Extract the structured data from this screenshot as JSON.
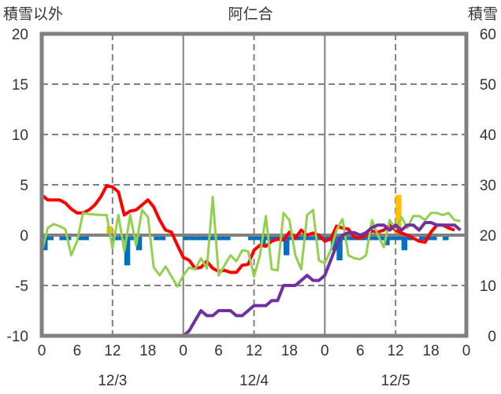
{
  "chart_data": {
    "type": "line",
    "title": "阿仁合",
    "left_axis_label": "積雪以外",
    "right_axis_label": "積雪",
    "left_ylim": [
      -10,
      20
    ],
    "left_ticks": [
      "20",
      "15",
      "10",
      "5",
      "0",
      "-5",
      "-10"
    ],
    "right_ylim": [
      0,
      60
    ],
    "right_ticks": [
      "60",
      "50",
      "40",
      "30",
      "20",
      "10",
      "0"
    ],
    "x_range_hours": [
      0,
      72
    ],
    "x_tick_labels": [
      "0",
      "6",
      "12",
      "18",
      "0",
      "6",
      "12",
      "18",
      "0",
      "6",
      "12",
      "18",
      "0"
    ],
    "date_labels": [
      "12/3",
      "12/4",
      "12/5"
    ],
    "grid": "dashed horizontal at 5-unit steps; dashed vertical at 12h, solid at day boundaries",
    "series": [
      {
        "name": "red",
        "axis": "left",
        "color": "#ff0000",
        "hours": [
          0,
          1,
          2,
          3,
          4,
          5,
          6,
          7,
          8,
          9,
          10,
          11,
          12,
          13,
          14,
          15,
          16,
          17,
          18,
          19,
          20,
          21,
          22,
          23,
          24,
          25,
          26,
          27,
          28,
          29,
          30,
          31,
          32,
          33,
          34,
          35,
          36,
          37,
          38,
          39,
          40,
          41,
          42,
          43,
          44,
          45,
          46,
          47,
          48,
          49,
          50,
          51,
          52,
          53,
          54,
          55,
          56,
          57,
          58,
          59,
          60,
          61,
          62,
          63,
          64,
          65,
          66,
          67,
          68,
          69,
          70
        ],
        "values": [
          4,
          3.5,
          3.5,
          3.5,
          3.2,
          2.6,
          2.2,
          2.2,
          2.5,
          3,
          3.8,
          4.9,
          4.8,
          4.3,
          2.0,
          2.4,
          2.5,
          3.0,
          3.5,
          2.8,
          1.5,
          0.5,
          0.3,
          -1,
          -2.2,
          -2.5,
          -3.3,
          -3.2,
          -2.6,
          -3.3,
          -3.6,
          -3.5,
          -3.7,
          -3.7,
          -3.0,
          -2.9,
          -1.5,
          -1.0,
          -1.1,
          -0.6,
          -0.4,
          -0.5,
          0.3,
          -0.3,
          0.5,
          0,
          0.2,
          0,
          -0.6,
          -0.4,
          0.9,
          0.7,
          0.6,
          -0.2,
          -0.3,
          0,
          0.4,
          0.3,
          0.5,
          1,
          0.5,
          0.2,
          0,
          -0.3,
          -0.6,
          -0.7,
          0.3,
          1.0,
          1.0,
          0.7,
          0.5
        ]
      },
      {
        "name": "green",
        "axis": "left",
        "color": "#92d050",
        "hours": [
          0,
          1,
          2,
          3,
          4,
          5,
          6,
          7,
          8,
          10,
          11,
          12,
          13,
          14,
          15,
          16,
          17,
          18,
          19,
          20,
          21,
          22,
          23,
          24,
          25,
          26,
          27,
          28,
          29,
          30,
          31,
          32,
          33,
          34,
          35,
          36,
          37,
          38,
          39,
          40,
          41,
          42,
          43,
          44,
          45,
          46,
          47,
          48,
          49,
          50,
          51,
          52,
          53,
          54,
          55,
          56,
          57,
          58,
          59,
          60,
          61,
          62,
          63,
          64,
          65,
          66,
          67,
          68,
          69,
          70,
          71
        ],
        "values": [
          -1.7,
          0.7,
          1.1,
          0.9,
          0.6,
          -2.0,
          -0.6,
          2.2,
          2.1,
          2.0,
          2.0,
          -1.3,
          2.0,
          -1.6,
          2.0,
          -1.0,
          2.5,
          1.8,
          -3.2,
          -4.0,
          -3.1,
          -4.1,
          -5.1,
          -4.0,
          -3.2,
          -3.4,
          -2.3,
          -3.3,
          3.8,
          -4.0,
          -3.0,
          -2.0,
          -2.6,
          -1.5,
          -1.6,
          -4.1,
          -2.0,
          1.9,
          -3.4,
          -3.5,
          2.2,
          1.5,
          -2.0,
          -3.4,
          2.0,
          2.5,
          -2.5,
          -2.8,
          -1.5,
          0.5,
          1.6,
          -2.0,
          -2.3,
          -2.4,
          -2.0,
          1.5,
          0.0,
          -1.2,
          1.5,
          0.6,
          1.8,
          0.7,
          1.9,
          1.9,
          1.5,
          2.2,
          2.2,
          2.0,
          2.2,
          1.5,
          1.4
        ]
      },
      {
        "name": "purple",
        "axis": "right",
        "color": "#7030a0",
        "hours": [
          0,
          24,
          25,
          26,
          27,
          28,
          29,
          30,
          31,
          32,
          33,
          34,
          35,
          36,
          37,
          38,
          39,
          40,
          41,
          42,
          43,
          44,
          45,
          46,
          47,
          48,
          49,
          50,
          51,
          52,
          53,
          54,
          55,
          56,
          57,
          58,
          59,
          60,
          61,
          62,
          63,
          64,
          65,
          66,
          67,
          68,
          69,
          70,
          71
        ],
        "values": [
          0,
          0,
          1,
          3,
          5,
          4,
          4,
          5,
          5,
          5,
          4,
          4,
          5,
          6,
          6,
          6,
          7,
          7,
          10,
          10,
          10,
          11,
          12,
          11,
          11,
          12,
          15,
          18,
          20,
          20.5,
          20.5,
          20,
          20.5,
          21.5,
          22,
          22,
          21,
          22,
          21,
          22,
          22,
          21,
          22.5,
          22.5,
          22,
          22,
          22,
          22,
          21
        ]
      },
      {
        "name": "blue-bars",
        "axis": "left",
        "type": "bar",
        "color": "#0070c0",
        "hours": [
          0,
          1,
          3,
          4,
          6,
          7,
          12,
          13,
          14,
          15,
          16,
          19,
          20,
          24,
          25,
          26,
          27,
          28,
          29,
          30,
          31,
          35,
          36,
          37,
          38,
          39,
          40,
          41,
          42,
          43,
          44,
          45,
          46,
          47,
          48,
          49,
          50,
          51,
          52,
          53,
          54,
          55,
          56,
          57,
          58,
          59,
          60,
          61,
          62,
          64,
          65,
          66,
          68
        ],
        "values": [
          -1.5,
          -0.5,
          -0.5,
          -0.5,
          -0.5,
          -0.5,
          -0.5,
          -0.5,
          -3,
          -0.5,
          -1.5,
          -0.5,
          -0.5,
          -0.5,
          -0.5,
          -0.5,
          -0.5,
          -0.5,
          -0.5,
          -0.5,
          -0.5,
          -0.5,
          -0.5,
          -1,
          -0.5,
          -0.5,
          -0.5,
          -2,
          -0.5,
          -0.5,
          -0.5,
          -0.5,
          -0.5,
          -0.5,
          -0.5,
          -1.5,
          -2.5,
          -0.5,
          -0.5,
          -0.5,
          -0.5,
          -0.5,
          -0.5,
          -0.5,
          -1,
          -0.5,
          -0.5,
          -1.5,
          -0.5,
          -0.5,
          -0.5,
          -0.5,
          -0.5
        ]
      },
      {
        "name": "orange-bars",
        "axis": "left",
        "type": "bar",
        "color": "#ffc000",
        "hours": [
          11,
          60
        ],
        "values": [
          0.9,
          4
        ]
      }
    ]
  }
}
